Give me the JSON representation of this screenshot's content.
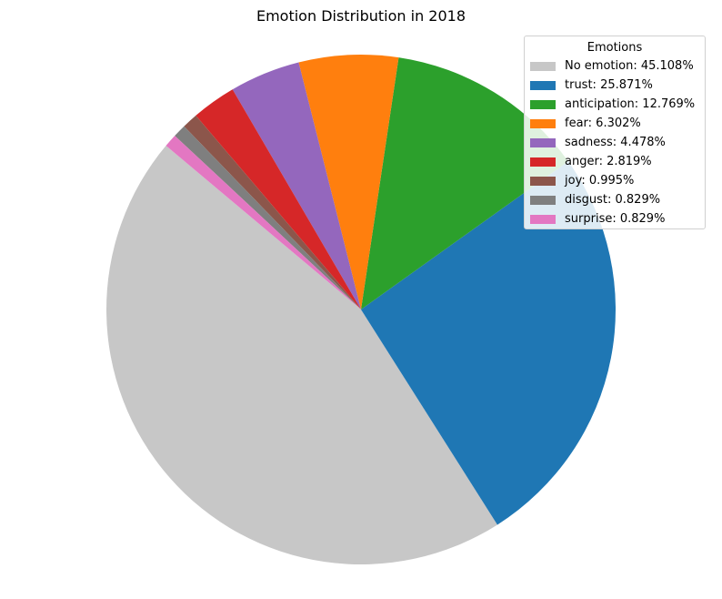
{
  "chart_data": {
    "type": "pie",
    "title": "Emotion Distribution in 2018",
    "legend_title": "Emotions",
    "legend_position": "top-right",
    "start_angle_deg": 140,
    "direction": "counterclockwise",
    "slices": [
      {
        "label": "No emotion: 45.108%",
        "value": 45.108,
        "color": "#c7c7c7"
      },
      {
        "label": "trust: 25.871%",
        "value": 25.871,
        "color": "#1f77b4"
      },
      {
        "label": "anticipation: 12.769%",
        "value": 12.769,
        "color": "#2ca02c"
      },
      {
        "label": "fear: 6.302%",
        "value": 6.302,
        "color": "#ff7f0e"
      },
      {
        "label": "sadness: 4.478%",
        "value": 4.478,
        "color": "#9467bd"
      },
      {
        "label": "anger: 2.819%",
        "value": 2.819,
        "color": "#d62728"
      },
      {
        "label": "joy: 0.995%",
        "value": 0.995,
        "color": "#8c564b"
      },
      {
        "label": "disgust: 0.829%",
        "value": 0.829,
        "color": "#7f7f7f"
      },
      {
        "label": "surprise: 0.829%",
        "value": 0.829,
        "color": "#e377c2"
      }
    ]
  }
}
